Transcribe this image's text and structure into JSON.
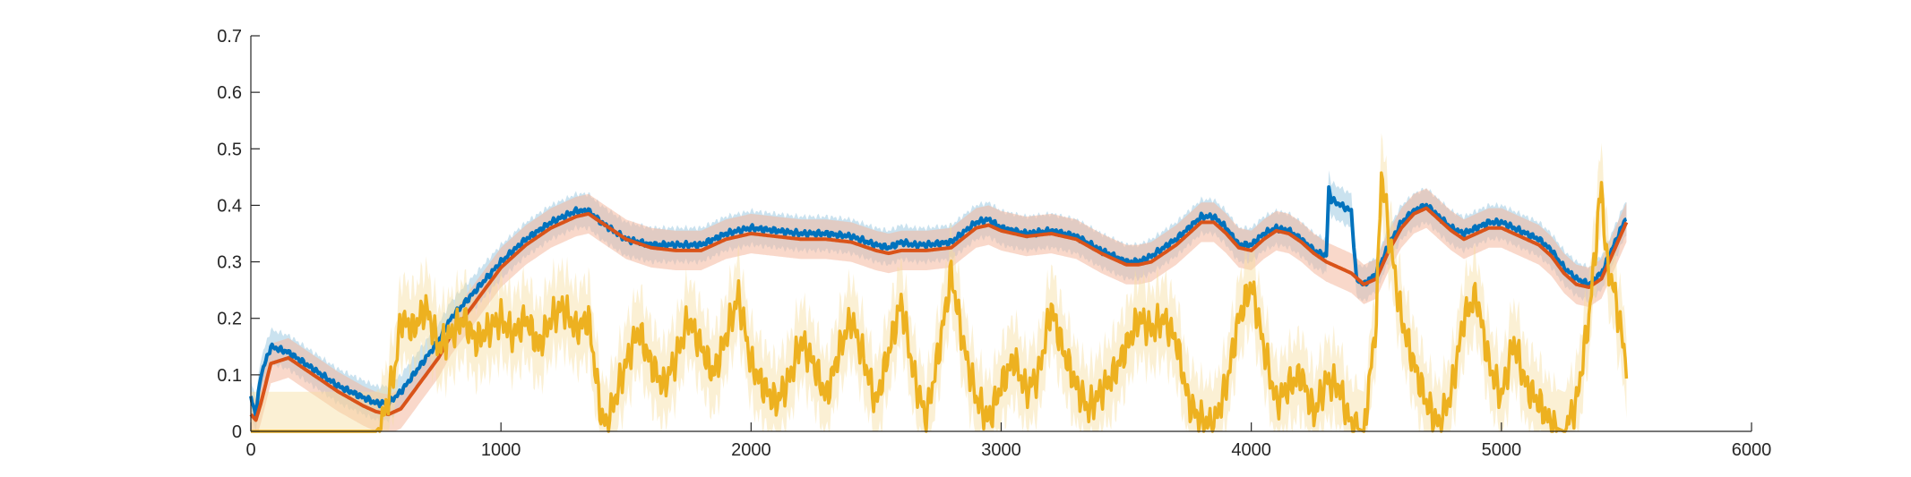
{
  "chart_data": {
    "type": "line",
    "title": "",
    "xlabel": "",
    "ylabel": "",
    "xlim": [
      0,
      6000
    ],
    "ylim": [
      0,
      0.7
    ],
    "xticks": [
      "0",
      "1000",
      "2000",
      "3000",
      "4000",
      "5000",
      "6000"
    ],
    "yticks": [
      "0",
      "0.1",
      "0.2",
      "0.3",
      "0.4",
      "0.5",
      "0.6",
      "0.7"
    ],
    "grid": false,
    "legend": "none",
    "series": [
      {
        "color": "#0072BD",
        "band_color": "#9ecae1",
        "x": [
          0,
          20,
          40,
          80,
          150,
          250,
          350,
          450,
          500,
          550,
          600,
          650,
          700,
          750,
          800,
          900,
          1000,
          1100,
          1200,
          1300,
          1350,
          1400,
          1500,
          1600,
          1700,
          1800,
          1900,
          2000,
          2100,
          2200,
          2300,
          2400,
          2500,
          2550,
          2600,
          2650,
          2700,
          2800,
          2900,
          2950,
          3000,
          3100,
          3200,
          3300,
          3400,
          3500,
          3550,
          3600,
          3700,
          3800,
          3850,
          3900,
          3950,
          4000,
          4050,
          4100,
          4150,
          4200,
          4250,
          4300,
          4310,
          4320,
          4400,
          4420,
          4450,
          4500,
          4550,
          4600,
          4650,
          4700,
          4750,
          4800,
          4850,
          4900,
          4950,
          5000,
          5050,
          5100,
          5150,
          5200,
          5250,
          5300,
          5350,
          5400,
          5450,
          5500
        ],
        "y": [
          0.06,
          0.03,
          0.1,
          0.15,
          0.14,
          0.11,
          0.08,
          0.06,
          0.05,
          0.05,
          0.07,
          0.1,
          0.13,
          0.16,
          0.2,
          0.25,
          0.3,
          0.34,
          0.37,
          0.39,
          0.39,
          0.37,
          0.34,
          0.33,
          0.33,
          0.33,
          0.35,
          0.36,
          0.355,
          0.35,
          0.35,
          0.345,
          0.33,
          0.325,
          0.335,
          0.33,
          0.33,
          0.335,
          0.37,
          0.375,
          0.36,
          0.35,
          0.355,
          0.345,
          0.32,
          0.3,
          0.3,
          0.31,
          0.34,
          0.38,
          0.38,
          0.36,
          0.33,
          0.33,
          0.35,
          0.36,
          0.355,
          0.34,
          0.32,
          0.31,
          0.43,
          0.41,
          0.39,
          0.27,
          0.26,
          0.28,
          0.33,
          0.37,
          0.39,
          0.4,
          0.38,
          0.36,
          0.35,
          0.36,
          0.37,
          0.37,
          0.36,
          0.35,
          0.34,
          0.32,
          0.29,
          0.27,
          0.26,
          0.28,
          0.33,
          0.38
        ],
        "band": 0.03
      },
      {
        "color": "#D95319",
        "band_color": "#f4b89e",
        "x": [
          0,
          20,
          40,
          80,
          150,
          250,
          350,
          450,
          500,
          550,
          600,
          650,
          700,
          750,
          800,
          900,
          1000,
          1100,
          1200,
          1300,
          1350,
          1400,
          1500,
          1600,
          1700,
          1800,
          1900,
          2000,
          2100,
          2200,
          2300,
          2400,
          2500,
          2550,
          2600,
          2650,
          2700,
          2800,
          2900,
          2950,
          3000,
          3100,
          3200,
          3300,
          3400,
          3500,
          3550,
          3600,
          3700,
          3800,
          3850,
          3900,
          3950,
          4000,
          4050,
          4100,
          4150,
          4200,
          4250,
          4300,
          4350,
          4400,
          4450,
          4500,
          4550,
          4600,
          4650,
          4700,
          4750,
          4800,
          4850,
          4900,
          4950,
          5000,
          5050,
          5100,
          5150,
          5200,
          5250,
          5300,
          5350,
          5400,
          5450,
          5500
        ],
        "y": [
          0.03,
          0.02,
          0.05,
          0.12,
          0.13,
          0.1,
          0.07,
          0.045,
          0.035,
          0.03,
          0.04,
          0.07,
          0.1,
          0.13,
          0.17,
          0.23,
          0.29,
          0.33,
          0.36,
          0.38,
          0.385,
          0.37,
          0.34,
          0.325,
          0.32,
          0.32,
          0.34,
          0.35,
          0.345,
          0.34,
          0.34,
          0.335,
          0.32,
          0.315,
          0.32,
          0.32,
          0.32,
          0.325,
          0.36,
          0.365,
          0.355,
          0.345,
          0.35,
          0.34,
          0.315,
          0.295,
          0.295,
          0.3,
          0.33,
          0.37,
          0.37,
          0.35,
          0.325,
          0.32,
          0.34,
          0.355,
          0.35,
          0.335,
          0.315,
          0.3,
          0.29,
          0.28,
          0.26,
          0.27,
          0.32,
          0.36,
          0.385,
          0.395,
          0.375,
          0.355,
          0.34,
          0.35,
          0.36,
          0.36,
          0.35,
          0.34,
          0.33,
          0.31,
          0.28,
          0.26,
          0.255,
          0.27,
          0.32,
          0.37
        ],
        "band": 0.035
      },
      {
        "color": "#EDB120",
        "band_color": "#f7dea0",
        "x": [
          0,
          500,
          520,
          550,
          580,
          600,
          650,
          700,
          750,
          800,
          850,
          900,
          950,
          1000,
          1050,
          1100,
          1150,
          1200,
          1250,
          1300,
          1350,
          1400,
          1420,
          1450,
          1500,
          1550,
          1600,
          1650,
          1700,
          1750,
          1800,
          1850,
          1900,
          1950,
          2000,
          2050,
          2100,
          2150,
          2200,
          2250,
          2300,
          2350,
          2400,
          2450,
          2500,
          2550,
          2600,
          2650,
          2700,
          2750,
          2800,
          2850,
          2900,
          2950,
          3000,
          3050,
          3100,
          3150,
          3200,
          3250,
          3300,
          3350,
          3400,
          3450,
          3500,
          3550,
          3600,
          3650,
          3700,
          3750,
          3800,
          3850,
          3900,
          3950,
          4000,
          4050,
          4100,
          4150,
          4200,
          4250,
          4300,
          4350,
          4400,
          4450,
          4500,
          4520,
          4550,
          4600,
          4650,
          4700,
          4750,
          4800,
          4850,
          4900,
          4950,
          5000,
          5050,
          5100,
          5150,
          5200,
          5250,
          5300,
          5350,
          5400,
          5420,
          5450,
          5500
        ],
        "y": [
          0,
          0,
          0.01,
          0.06,
          0.12,
          0.2,
          0.18,
          0.22,
          0.15,
          0.17,
          0.2,
          0.16,
          0.18,
          0.2,
          0.17,
          0.2,
          0.15,
          0.2,
          0.22,
          0.18,
          0.2,
          0.03,
          0.01,
          0.05,
          0.12,
          0.18,
          0.12,
          0.08,
          0.13,
          0.2,
          0.15,
          0.1,
          0.17,
          0.24,
          0.12,
          0.08,
          0.05,
          0.09,
          0.16,
          0.12,
          0.06,
          0.14,
          0.2,
          0.13,
          0.05,
          0.14,
          0.23,
          0.1,
          0.02,
          0.14,
          0.28,
          0.15,
          0.06,
          0.02,
          0.08,
          0.13,
          0.07,
          0.1,
          0.22,
          0.14,
          0.08,
          0.04,
          0.07,
          0.1,
          0.15,
          0.2,
          0.18,
          0.2,
          0.16,
          0.05,
          0.02,
          0.01,
          0.08,
          0.2,
          0.26,
          0.15,
          0.05,
          0.08,
          0.1,
          0.03,
          0.09,
          0.08,
          0.01,
          0.0,
          0.2,
          0.46,
          0.35,
          0.2,
          0.12,
          0.05,
          0.01,
          0.07,
          0.2,
          0.24,
          0.12,
          0.06,
          0.16,
          0.08,
          0.05,
          0.01,
          0.0,
          0.05,
          0.2,
          0.44,
          0.3,
          0.25,
          0.12
        ],
        "band": 0.07
      }
    ]
  }
}
